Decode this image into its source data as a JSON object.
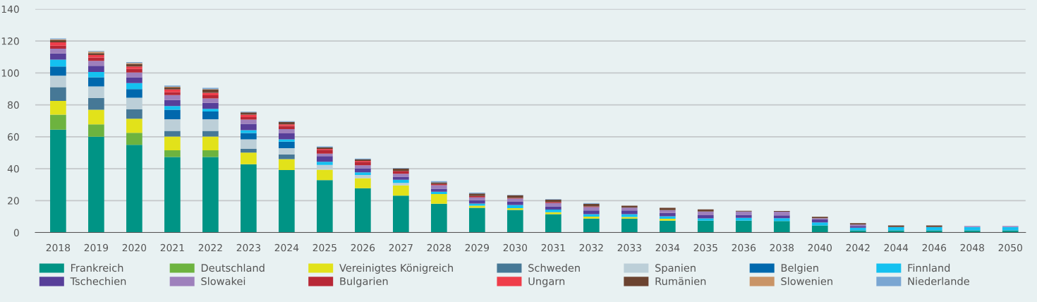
{
  "chart_data": {
    "type": "bar",
    "stacked": true,
    "categories": [
      "2018",
      "2019",
      "2020",
      "2021",
      "2022",
      "2023",
      "2024",
      "2025",
      "2026",
      "2027",
      "2028",
      "2029",
      "2030",
      "2031",
      "2032",
      "2033",
      "2034",
      "2035",
      "2036",
      "2038",
      "2040",
      "2042",
      "2044",
      "2046",
      "2048",
      "2050"
    ],
    "series": [
      {
        "name": "Frankreich",
        "color": "#009485",
        "values": [
          64.5,
          60,
          55,
          47.3,
          47.3,
          42.8,
          39.2,
          32.9,
          27.8,
          23.1,
          18,
          15.5,
          14.2,
          11.5,
          8.8,
          8.8,
          7.4,
          7.4,
          7.4,
          7.2,
          4.5,
          1.4,
          1.4,
          1.4,
          1.4,
          1.4
        ]
      },
      {
        "name": "Deutschland",
        "color": "#6db33f",
        "values": [
          9.3,
          7.8,
          7.5,
          4.2,
          4.2,
          0,
          0,
          0,
          0,
          0,
          0,
          0,
          0,
          0,
          0,
          0,
          0,
          0,
          0,
          0,
          0,
          0,
          0,
          0,
          0,
          0
        ]
      },
      {
        "name": "Vereinigtes Königreich",
        "color": "#e2e21a",
        "values": [
          8.7,
          9.1,
          8.8,
          8.6,
          8.6,
          7.3,
          6.8,
          6.5,
          6.3,
          6.4,
          6.1,
          1.3,
          1.1,
          1.2,
          1.2,
          1,
          1.2,
          0,
          0,
          0,
          0,
          0,
          0,
          0,
          0,
          0
        ]
      },
      {
        "name": "Schweden",
        "color": "#467896",
        "values": [
          8.6,
          7.4,
          5.9,
          3.6,
          3.6,
          2.3,
          3,
          0,
          0,
          0,
          0,
          0,
          0,
          0,
          0,
          0,
          0,
          0,
          0,
          0,
          0,
          0,
          0,
          0,
          0,
          0
        ]
      },
      {
        "name": "Spanien",
        "color": "#bccfd8",
        "values": [
          7.2,
          7.2,
          7.3,
          7.3,
          7.3,
          6,
          3.8,
          3,
          2,
          1.6,
          0,
          0,
          0,
          0,
          0,
          0,
          0,
          0,
          0,
          0,
          0,
          0,
          0,
          0,
          0,
          0
        ]
      },
      {
        "name": "Belgien",
        "color": "#0068ad",
        "values": [
          5.7,
          5.8,
          5.4,
          5.9,
          4.8,
          3.9,
          4.1,
          0,
          0,
          0,
          0,
          0,
          0,
          0,
          0,
          0,
          0,
          0,
          0,
          0,
          0,
          0,
          0,
          0,
          0,
          0
        ]
      },
      {
        "name": "Finnland",
        "color": "#14c1f0",
        "values": [
          4.3,
          3.3,
          3.7,
          2.4,
          1.7,
          1.8,
          1.5,
          1.9,
          1.6,
          2,
          1.5,
          1.4,
          2,
          1.7,
          1.5,
          1.7,
          1.6,
          1.5,
          1.8,
          1.8,
          1.8,
          1.6,
          2.1,
          2.1,
          2.1,
          2.1
        ]
      },
      {
        "name": "Tschechien",
        "color": "#573f99",
        "values": [
          3.9,
          3.9,
          3.7,
          3.7,
          3.8,
          4,
          3.7,
          3.6,
          2.6,
          1.8,
          1.8,
          2,
          1.9,
          2,
          2.3,
          2.3,
          2.1,
          2,
          1.9,
          1.8,
          2,
          1.1,
          0,
          0,
          0,
          0
        ]
      },
      {
        "name": "Slowakei",
        "color": "#9e80bc",
        "values": [
          3,
          3,
          3,
          3.1,
          2.7,
          2.7,
          2.7,
          1.5,
          1.8,
          1.9,
          2.2,
          1.8,
          2,
          2.1,
          2.1,
          1.8,
          1.8,
          2.3,
          2.1,
          2.3,
          0.7,
          0.9,
          0,
          0,
          0.6,
          0.6
        ]
      },
      {
        "name": "Bulgarien",
        "color": "#b82836",
        "values": [
          1.8,
          2.1,
          2.2,
          1.8,
          2,
          1.5,
          2,
          2.4,
          2.2,
          1.8,
          0.8,
          0.9,
          0.5,
          0.6,
          0.5,
          0,
          0,
          0,
          0,
          0,
          0,
          0,
          0,
          0,
          0,
          0
        ]
      },
      {
        "name": "Ungarn",
        "color": "#ef3d4a",
        "values": [
          2.1,
          1.6,
          1.5,
          1.8,
          1.6,
          1.5,
          1,
          0.6,
          0.6,
          0,
          0,
          0,
          0,
          0,
          0,
          0,
          0,
          0,
          0,
          0,
          0,
          0,
          0,
          0,
          0,
          0
        ]
      },
      {
        "name": "Rumänien",
        "color": "#6b4330",
        "values": [
          1.4,
          1.2,
          1.7,
          1.2,
          2,
          1.5,
          1.5,
          0.9,
          0.9,
          1.5,
          1,
          1.6,
          1.6,
          1.5,
          1.6,
          1.2,
          1.4,
          1.3,
          0.4,
          0.4,
          0.9,
          0.9,
          1,
          1,
          0,
          0
        ]
      },
      {
        "name": "Slowenien",
        "color": "#c99467",
        "values": [
          0.5,
          0.9,
          0.5,
          0.4,
          0.3,
          0,
          0,
          0,
          0,
          0,
          0,
          0,
          0,
          0,
          0,
          0,
          0,
          0,
          0,
          0,
          0,
          0,
          0,
          0,
          0,
          0
        ]
      },
      {
        "name": "Niederlande",
        "color": "#7aa6d2",
        "values": [
          0.6,
          0.4,
          0.6,
          0.8,
          0.7,
          0.4,
          0.5,
          0.7,
          0.5,
          0.4,
          0.8,
          0.5,
          0.3,
          0.3,
          0.5,
          0,
          0,
          0,
          0,
          0,
          0,
          0,
          0,
          0,
          0,
          0
        ]
      }
    ],
    "ylim": [
      0,
      140
    ],
    "yticks": [
      0,
      20,
      40,
      60,
      80,
      100,
      120,
      140
    ],
    "grid": "y",
    "legend": "bottom"
  }
}
